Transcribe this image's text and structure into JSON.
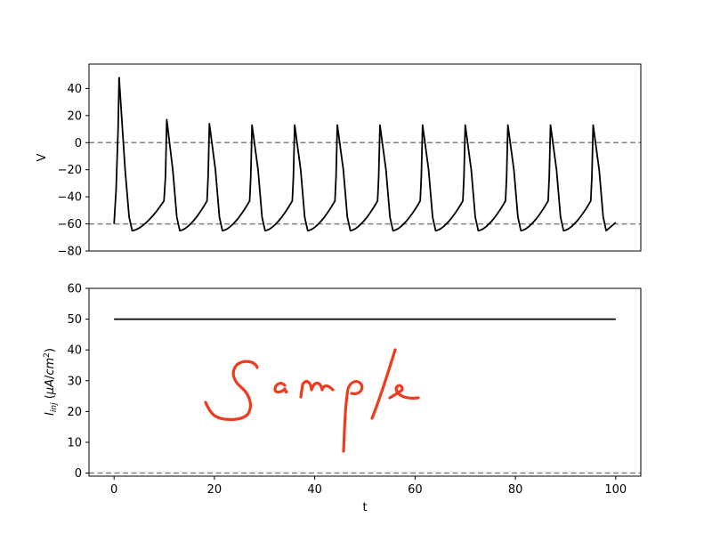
{
  "chart_data": [
    {
      "type": "line",
      "title": "",
      "xlabel": "",
      "ylabel": "V",
      "xlim": [
        -5,
        105
      ],
      "ylim": [
        -80,
        58
      ],
      "show_xticks": false,
      "xticks": [
        0,
        20,
        40,
        60,
        80,
        100
      ],
      "yticks": [
        -80,
        -60,
        -40,
        -20,
        0,
        20,
        40
      ],
      "ytick_labels": [
        "−80",
        "−60",
        "−40",
        "−20",
        "0",
        "20",
        "40"
      ],
      "reference_lines": [
        {
          "y": 0,
          "style": "dashed",
          "color": "#808080"
        },
        {
          "y": -60,
          "style": "dashed",
          "color": "#808080"
        }
      ],
      "line_color": "#000000",
      "spikes": [
        {
          "t": 1.0,
          "peak": 48
        },
        {
          "t": 10.5,
          "peak": 17
        },
        {
          "t": 19.0,
          "peak": 14
        },
        {
          "t": 27.5,
          "peak": 13
        },
        {
          "t": 36.0,
          "peak": 13
        },
        {
          "t": 44.5,
          "peak": 13
        },
        {
          "t": 53.0,
          "peak": 13
        },
        {
          "t": 61.5,
          "peak": 13
        },
        {
          "t": 70.0,
          "peak": 13
        },
        {
          "t": 78.5,
          "peak": 13
        },
        {
          "t": 87.0,
          "peak": 13
        },
        {
          "t": 95.5,
          "peak": 13
        }
      ],
      "t_range": [
        0,
        100
      ],
      "v_rest": -60,
      "v_undershoot": -65,
      "v_end": -59
    },
    {
      "type": "line",
      "title": "",
      "xlabel": "t",
      "ylabel": "I_inj (μA/cm²)",
      "xlim": [
        -5,
        105
      ],
      "ylim": [
        -1,
        60
      ],
      "xticks": [
        0,
        20,
        40,
        60,
        80,
        100
      ],
      "xtick_labels": [
        "0",
        "20",
        "40",
        "60",
        "80",
        "100"
      ],
      "yticks": [
        0,
        10,
        20,
        30,
        40,
        50,
        60
      ],
      "ytick_labels": [
        "0",
        "10",
        "20",
        "30",
        "40",
        "50",
        "60"
      ],
      "reference_lines": [
        {
          "y": 0,
          "style": "dashed",
          "color": "#808080"
        }
      ],
      "line_color": "#000000",
      "series": [
        {
          "x": [
            0,
            100
          ],
          "values": [
            50,
            50
          ]
        }
      ]
    }
  ],
  "watermark": {
    "text": "Sample",
    "color": "#f03a1e"
  }
}
